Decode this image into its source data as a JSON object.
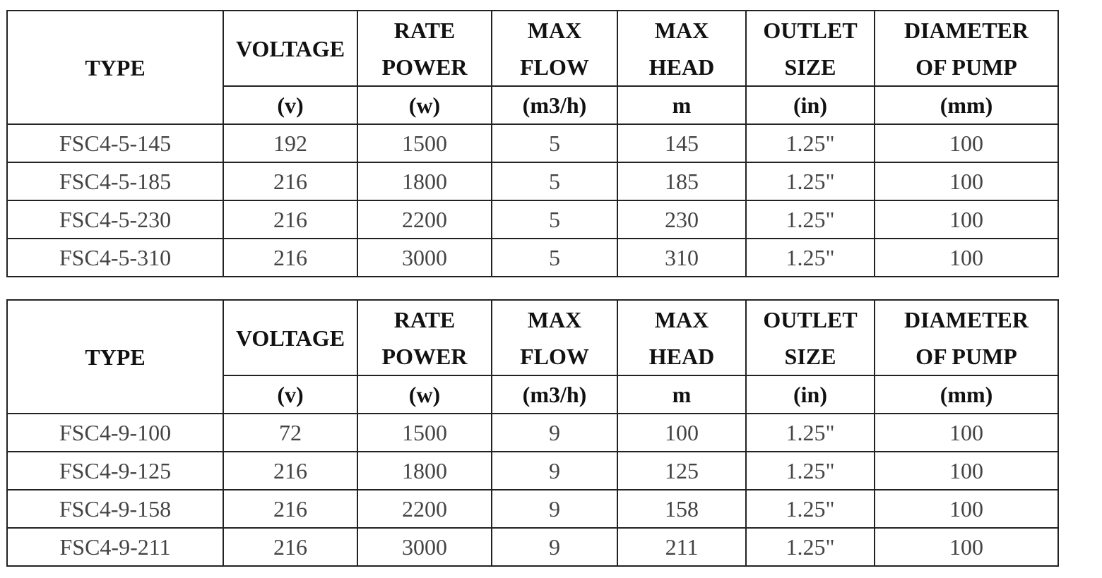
{
  "tables": [
    {
      "header": [
        "TYPE",
        "VOLTAGE",
        "RATE\nPOWER",
        "MAX\nFLOW",
        "MAX\nHEAD",
        "OUTLET\nSIZE",
        "DIAMETER\nOF PUMP"
      ],
      "units": [
        "(v)",
        "(w)",
        "(m3/h)",
        "m",
        "(in)",
        "(mm)"
      ],
      "rows": [
        [
          "FSC4-5-145",
          "192",
          "1500",
          "5",
          "145",
          "1.25\"",
          "100"
        ],
        [
          "FSC4-5-185",
          "216",
          "1800",
          "5",
          "185",
          "1.25\"",
          "100"
        ],
        [
          "FSC4-5-230",
          "216",
          "2200",
          "5",
          "230",
          "1.25\"",
          "100"
        ],
        [
          "FSC4-5-310",
          "216",
          "3000",
          "5",
          "310",
          "1.25\"",
          "100"
        ]
      ]
    },
    {
      "header": [
        "TYPE",
        "VOLTAGE",
        "RATE\nPOWER",
        "MAX\nFLOW",
        "MAX\nHEAD",
        "OUTLET\nSIZE",
        "DIAMETER\nOF PUMP"
      ],
      "units": [
        "(v)",
        "(w)",
        "(m3/h)",
        "m",
        "(in)",
        "(mm)"
      ],
      "rows": [
        [
          "FSC4-9-100",
          "72",
          "1500",
          "9",
          "100",
          "1.25\"",
          "100"
        ],
        [
          "FSC4-9-125",
          "216",
          "1800",
          "9",
          "125",
          "1.25\"",
          "100"
        ],
        [
          "FSC4-9-158",
          "216",
          "2200",
          "9",
          "158",
          "1.25\"",
          "100"
        ],
        [
          "FSC4-9-211",
          "216",
          "3000",
          "9",
          "211",
          "1.25\"",
          "100"
        ]
      ]
    }
  ]
}
